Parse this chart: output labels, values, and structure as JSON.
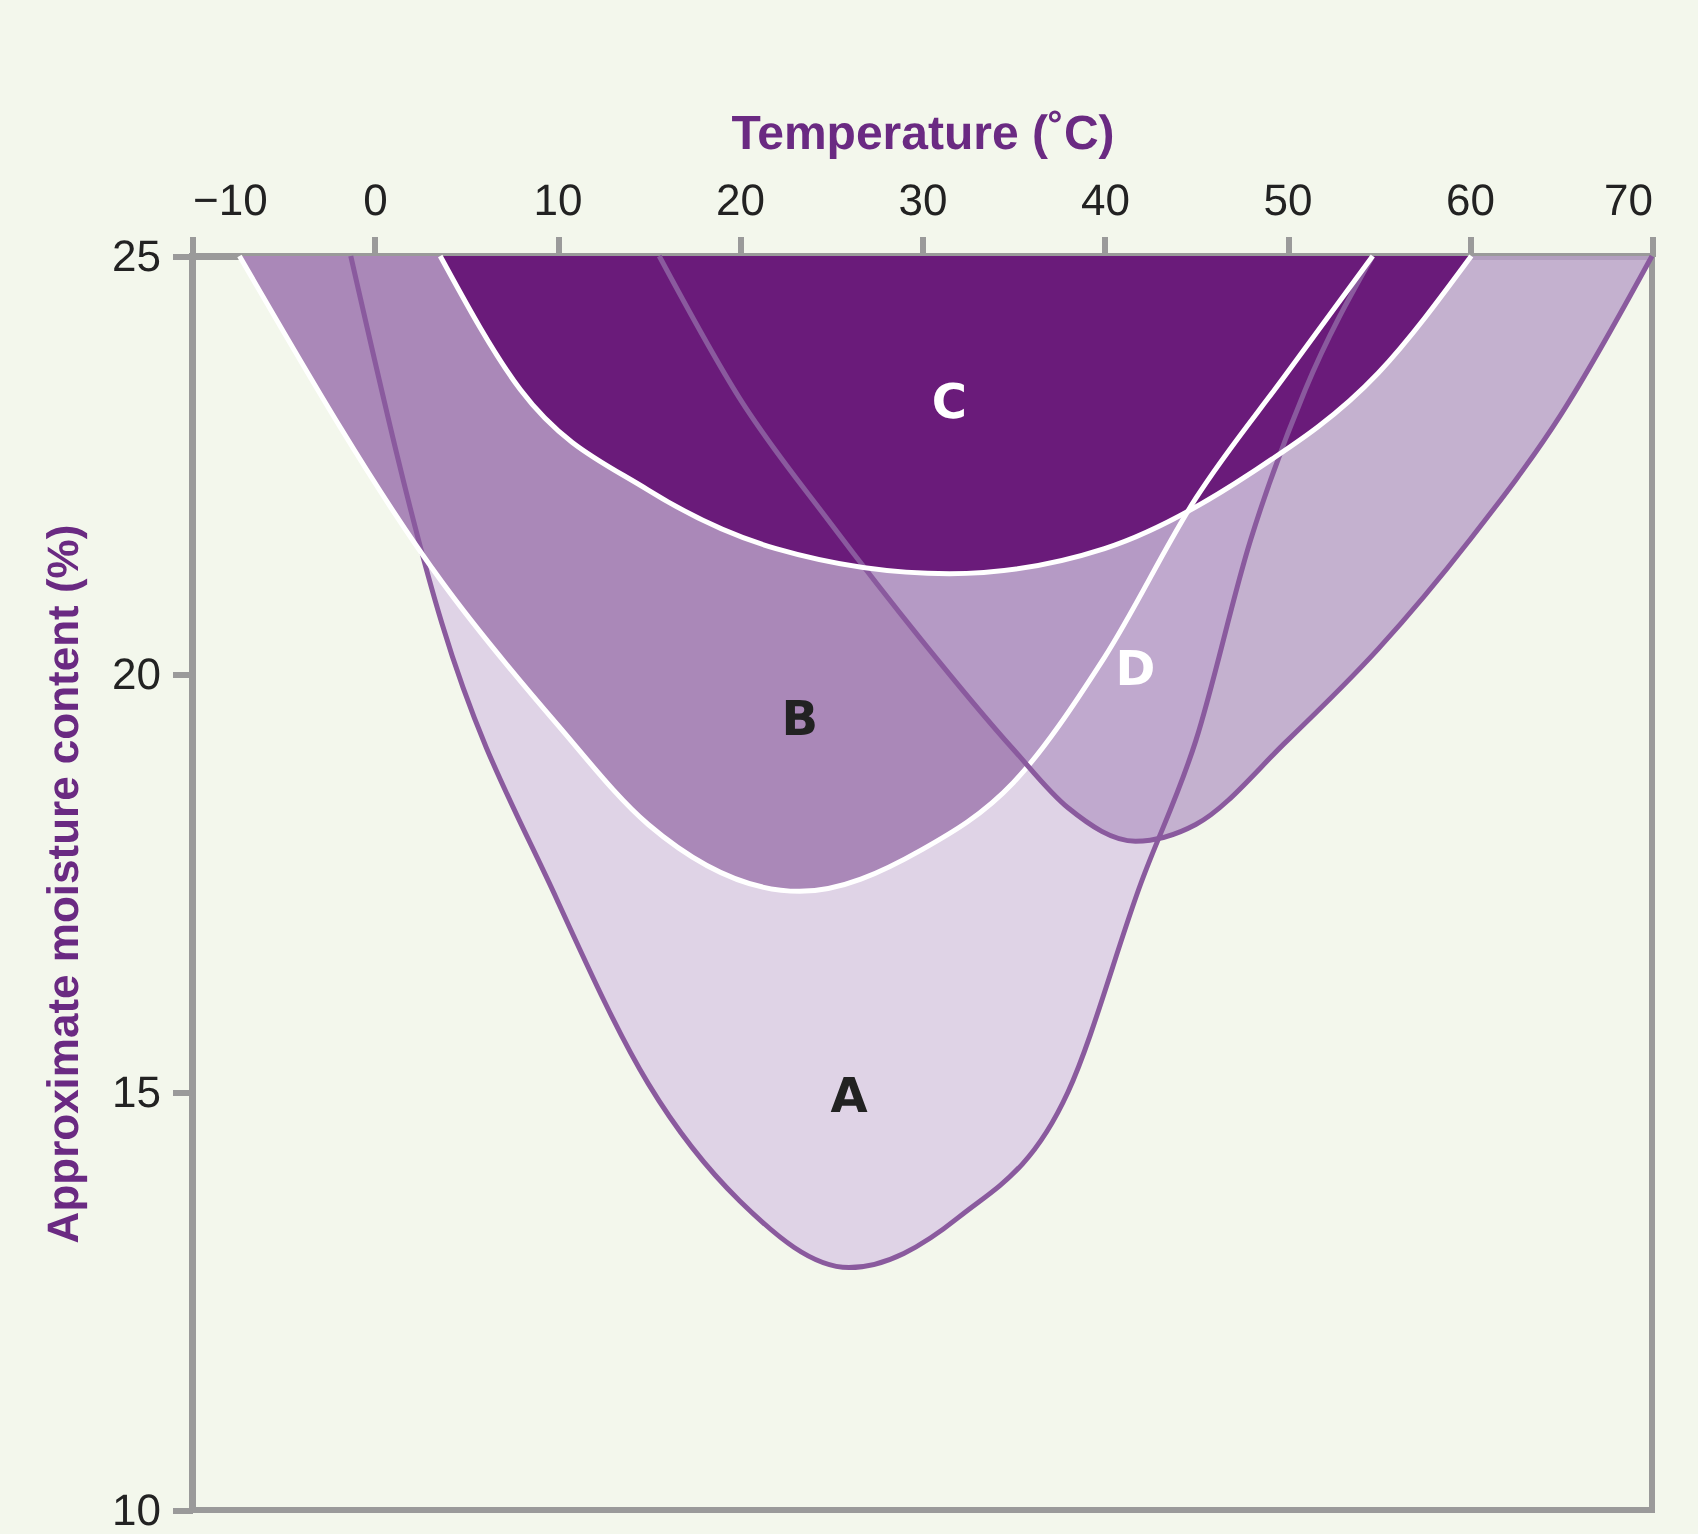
{
  "chart_data": {
    "type": "area",
    "xlabel": "Temperature (˚C)",
    "ylabel": "Approximate moisture content (%)",
    "xlim": [
      -10,
      70
    ],
    "xticks": [
      -10,
      0,
      10,
      20,
      30,
      40,
      50,
      60,
      70
    ],
    "ylim": [
      10,
      25
    ],
    "yticks": [
      10,
      15,
      20,
      25
    ],
    "grid": false,
    "series": [
      {
        "name": "A",
        "color": "#dfd3e6",
        "x": [
          -1.3,
          3.7,
          10,
          15,
          20,
          26,
          32,
          38,
          42,
          45,
          48,
          51,
          54.7
        ],
        "values": [
          25,
          20.6,
          17.3,
          15.1,
          13.7,
          12.9,
          13.5,
          15.0,
          17.5,
          19.2,
          21.6,
          23.4,
          25
        ]
      },
      {
        "name": "B",
        "color": "#aa88b8",
        "x": [
          -7.4,
          3.7,
          10,
          15,
          23.3,
          30,
          35,
          40,
          45,
          50,
          54.7
        ],
        "values": [
          25,
          21.1,
          19.4,
          18.2,
          17.4,
          17.9,
          18.7,
          20.2,
          22.1,
          23.6,
          25
        ]
      },
      {
        "name": "D",
        "color": "#b89fc8",
        "x": [
          15.6,
          20,
          25,
          30,
          35,
          38,
          41.7,
          45,
          50,
          55,
          60,
          65,
          70
        ],
        "values": [
          25,
          23.3,
          21.8,
          20.4,
          19.1,
          18.4,
          18.0,
          18.2,
          19.2,
          20.3,
          21.6,
          23.1,
          25
        ]
      },
      {
        "name": "C",
        "color": "#6a1b7a",
        "x": [
          3.6,
          8,
          15,
          22,
          31.5,
          40,
          48,
          55,
          60.1
        ],
        "values": [
          25,
          23.4,
          22.2,
          21.5,
          21.2,
          21.5,
          22.4,
          23.6,
          25
        ]
      }
    ]
  }
}
